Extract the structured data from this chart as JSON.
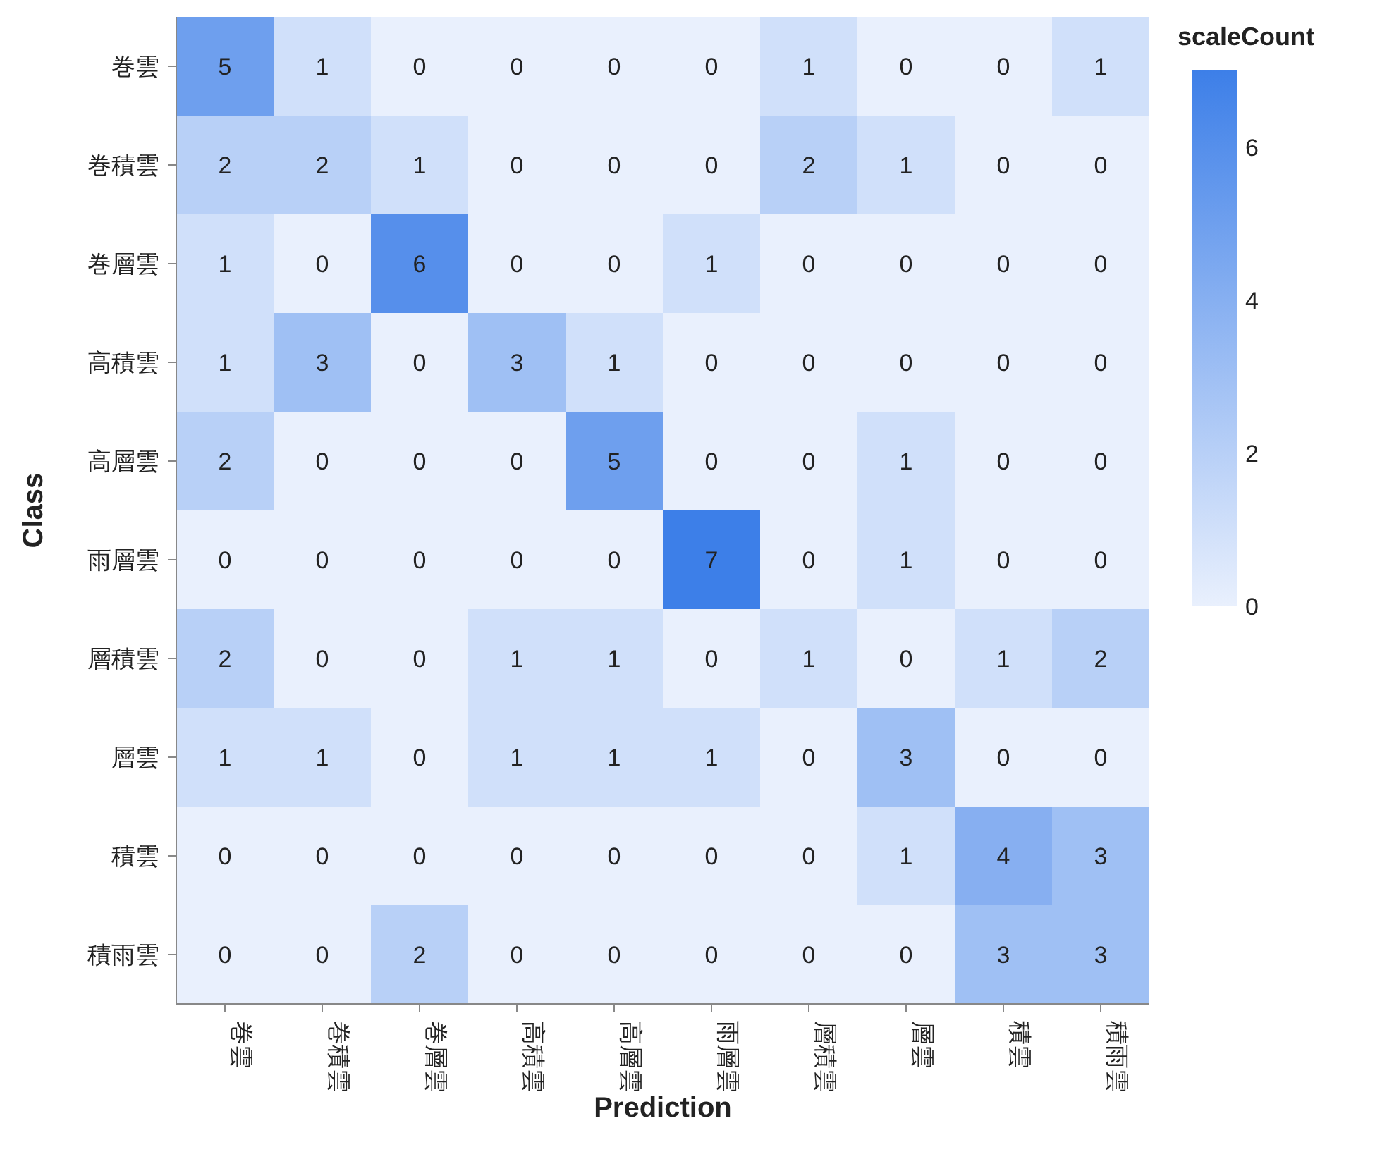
{
  "chart_data": {
    "type": "heatmap",
    "xlabel": "Prediction",
    "ylabel": "Class",
    "clabel": "scaleCount",
    "categories": [
      "巻雲",
      "巻積雲",
      "巻層雲",
      "高積雲",
      "高層雲",
      "雨層雲",
      "層積雲",
      "層雲",
      "積雲",
      "積雨雲"
    ],
    "y_categories": [
      "巻雲",
      "巻積雲",
      "巻層雲",
      "高積雲",
      "高層雲",
      "雨層雲",
      "層積雲",
      "層雲",
      "積雲",
      "積雨雲"
    ],
    "cells": [
      [
        5,
        1,
        0,
        0,
        0,
        0,
        1,
        0,
        0,
        1
      ],
      [
        2,
        2,
        1,
        0,
        0,
        0,
        2,
        1,
        0,
        0
      ],
      [
        1,
        0,
        6,
        0,
        0,
        1,
        0,
        0,
        0,
        0
      ],
      [
        1,
        3,
        0,
        3,
        1,
        0,
        0,
        0,
        0,
        0
      ],
      [
        2,
        0,
        0,
        0,
        5,
        0,
        0,
        1,
        0,
        0
      ],
      [
        0,
        0,
        0,
        0,
        0,
        7,
        0,
        1,
        0,
        0
      ],
      [
        2,
        0,
        0,
        1,
        1,
        0,
        1,
        0,
        1,
        2
      ],
      [
        1,
        1,
        0,
        1,
        1,
        1,
        0,
        3,
        0,
        0
      ],
      [
        0,
        0,
        0,
        0,
        0,
        0,
        0,
        1,
        4,
        3
      ],
      [
        0,
        0,
        2,
        0,
        0,
        0,
        0,
        0,
        3,
        3
      ]
    ],
    "clim": [
      0,
      7
    ],
    "cticks": [
      0,
      2,
      4,
      6
    ],
    "data_labels": true
  }
}
